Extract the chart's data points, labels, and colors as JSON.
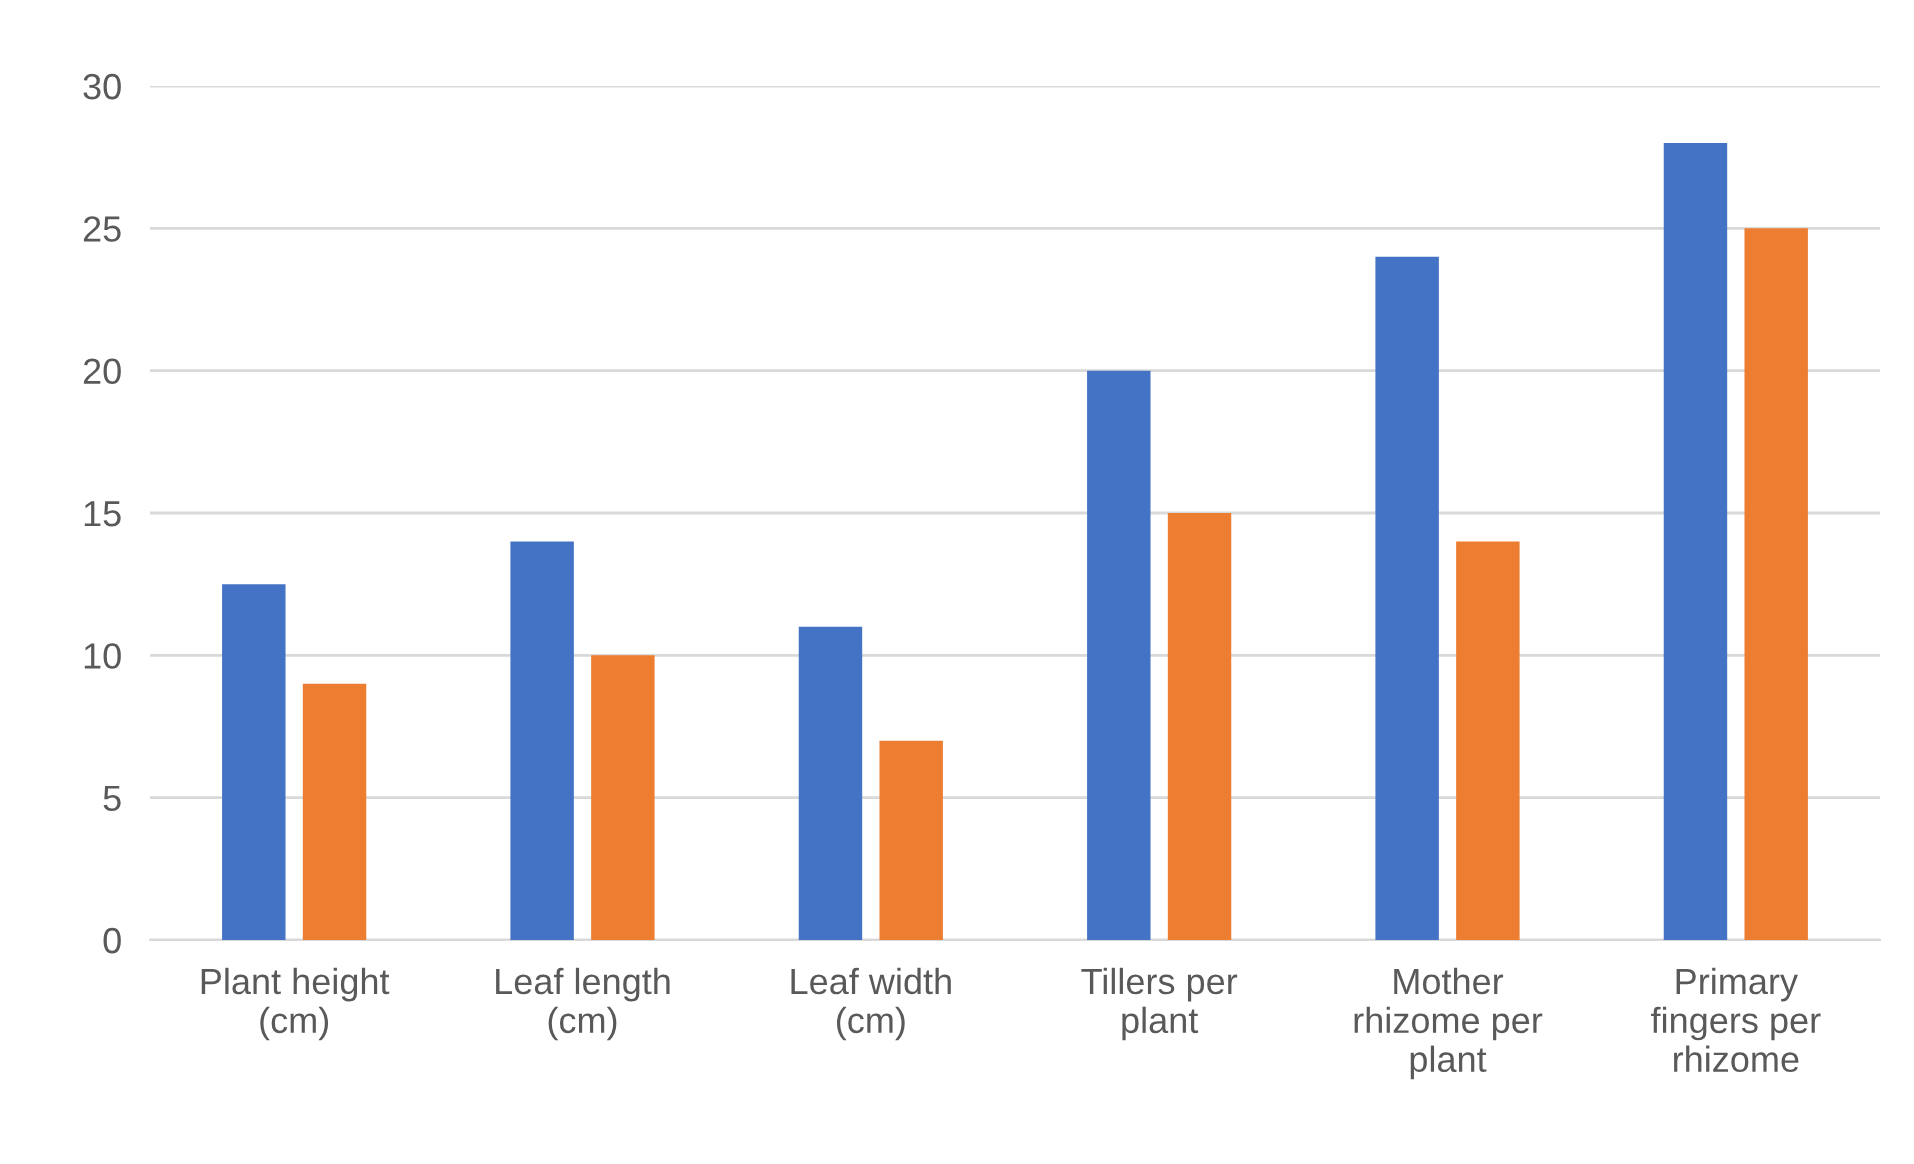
{
  "chart_data": {
    "type": "bar",
    "categories": [
      "Plant height (cm)",
      "Leaf length (cm)",
      "Leaf width (cm)",
      "Tillers per plant",
      "Mother rhizome per plant",
      "Primary fingers per rhizome"
    ],
    "series": [
      {
        "color": "#4472c4",
        "values": [
          12.5,
          14,
          11,
          20,
          24,
          28
        ]
      },
      {
        "color": "#ed7d31",
        "values": [
          9,
          10,
          7,
          15,
          14,
          25
        ]
      }
    ],
    "ylim": [
      0,
      30
    ],
    "yticks": [
      0,
      5,
      10,
      15,
      20,
      25,
      30
    ],
    "grid": "y",
    "legend": false
  }
}
